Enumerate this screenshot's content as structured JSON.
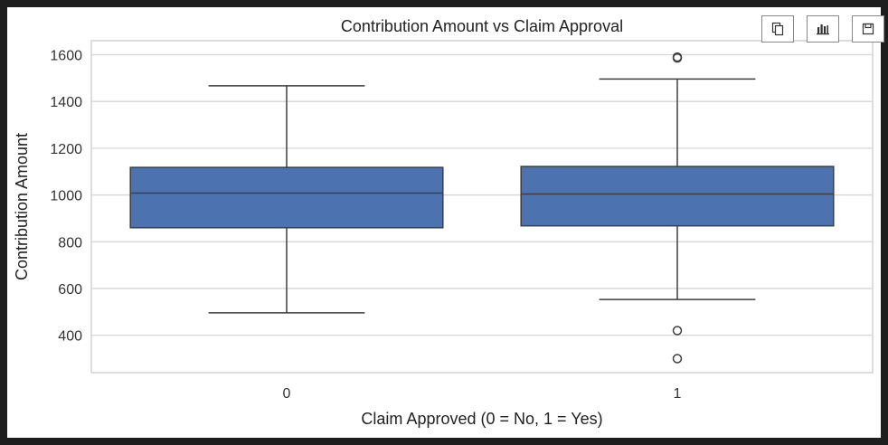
{
  "toolbar": {
    "buttons": [
      {
        "icon": "copy-icon"
      },
      {
        "icon": "bar-chart-icon"
      },
      {
        "icon": "save-icon"
      }
    ]
  },
  "chart_data": {
    "type": "box",
    "title": "Contribution Amount vs Claim Approval",
    "xlabel": "Claim Approved (0 = No, 1 = Yes)",
    "ylabel": "Contribution Amount",
    "categories": [
      "0",
      "1"
    ],
    "ylim": [
      240,
      1660
    ],
    "yticks": [
      400,
      600,
      800,
      1000,
      1200,
      1400,
      1600
    ],
    "grid": true,
    "box_color": "#4c72b0",
    "boxes": [
      {
        "category": "0",
        "whisker_low": 496,
        "q1": 860,
        "median": 1008,
        "q3": 1118,
        "whisker_high": 1467,
        "outliers": []
      },
      {
        "category": "1",
        "whisker_low": 553,
        "q1": 868,
        "median": 1004,
        "q3": 1122,
        "whisker_high": 1496,
        "outliers": [
          1590,
          1586,
          420,
          300
        ]
      }
    ]
  }
}
